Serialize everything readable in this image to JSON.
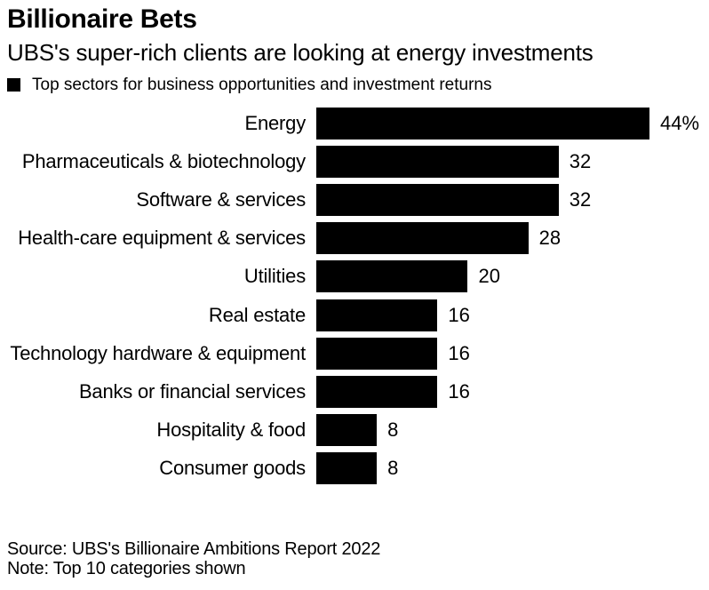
{
  "title": "Billionaire Bets",
  "subtitle": "UBS's super-rich clients are looking at energy investments",
  "legend": {
    "swatch_color": "#000000",
    "label": "Top sectors for business opportunities and investment returns"
  },
  "chart_data": {
    "type": "bar",
    "orientation": "horizontal",
    "title": "Top sectors for business opportunities and investment returns",
    "categories": [
      "Energy",
      "Pharmaceuticals & biotechnology",
      "Software & services",
      "Health-care equipment & services",
      "Utilities",
      "Real estate",
      "Technology hardware & equipment",
      "Banks or financial services",
      "Hospitality & food",
      "Consumer goods"
    ],
    "values": [
      44,
      32,
      32,
      28,
      20,
      16,
      16,
      16,
      8,
      8
    ],
    "value_labels": [
      "44%",
      "32",
      "32",
      "28",
      "20",
      "16",
      "16",
      "16",
      "8",
      "8"
    ],
    "unit": "percent of respondents",
    "xlim": [
      0,
      44
    ],
    "bar_color": "#000000",
    "grid": false,
    "legend_position": "top"
  },
  "footer": {
    "source": "Source: UBS's Billionaire Ambitions Report 2022",
    "note": "Note: Top 10 categories shown"
  }
}
